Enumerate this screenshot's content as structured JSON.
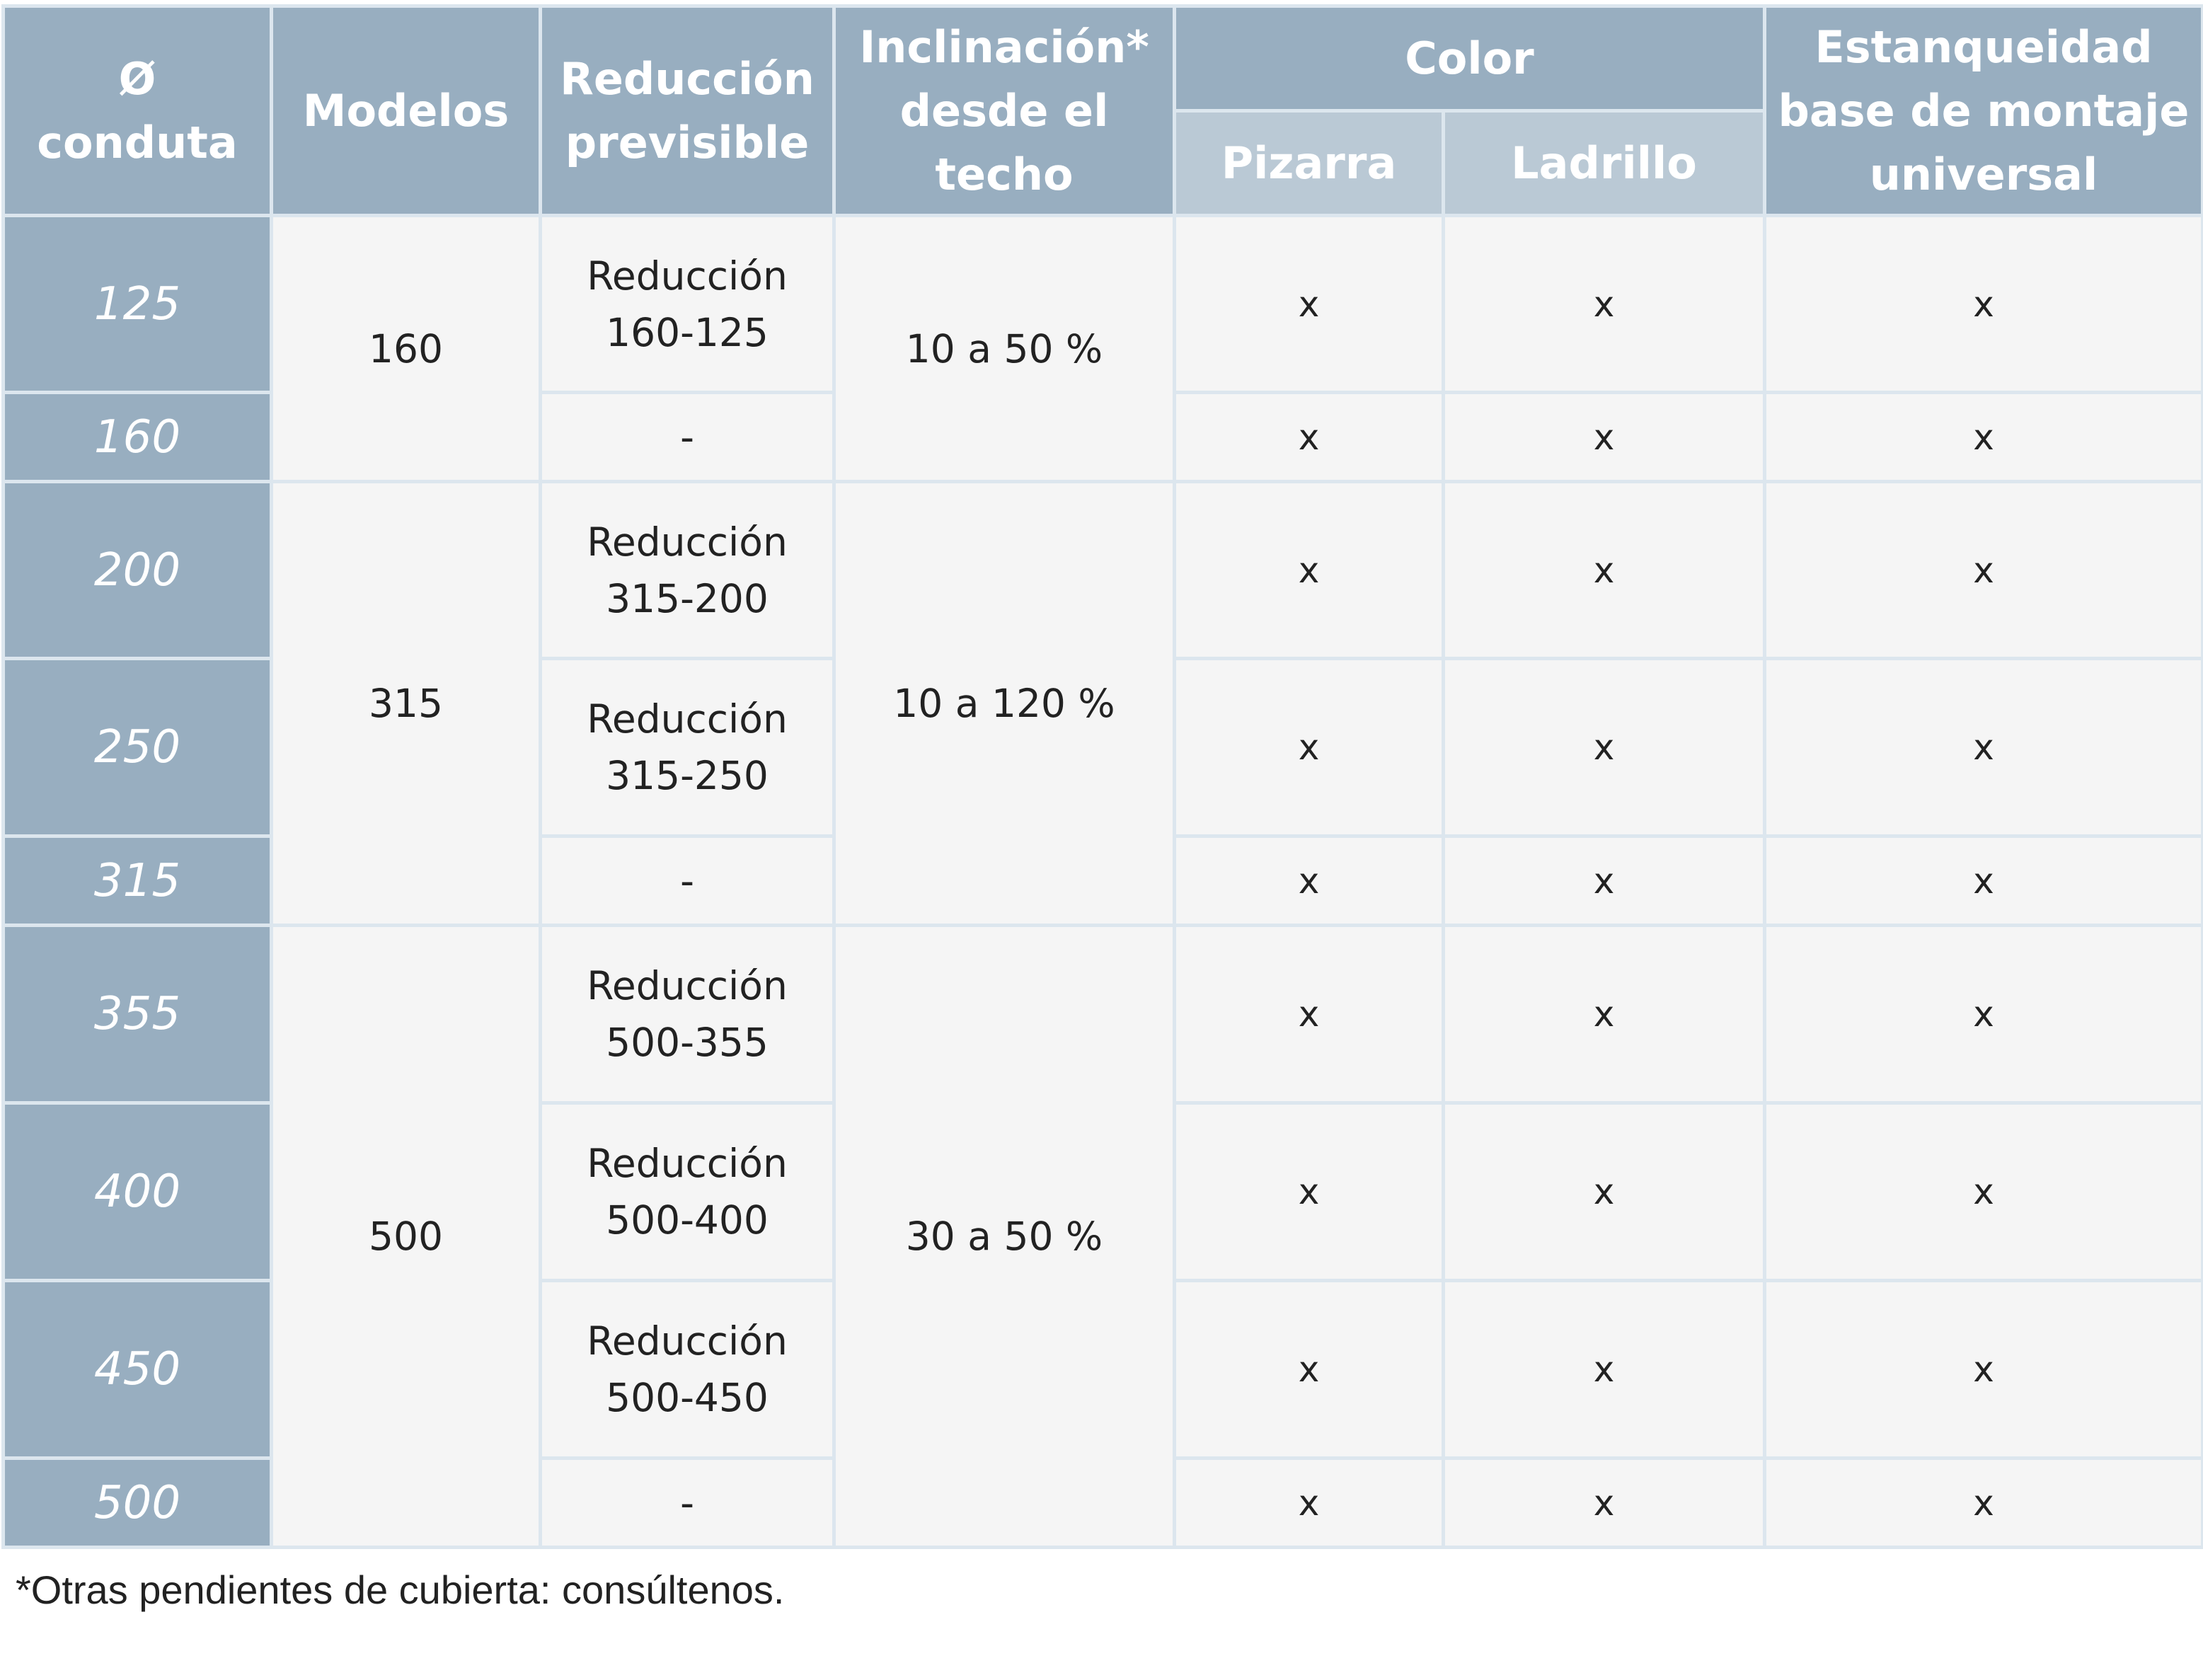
{
  "header": {
    "duct": [
      "Ø",
      "conduta"
    ],
    "models": [
      "Modelos"
    ],
    "reduction": [
      "Reducción",
      "previsible"
    ],
    "incline": [
      "Inclinación*",
      "desde el",
      "techo"
    ],
    "color": "Color",
    "color_sub": [
      "Pizarra",
      "Ladrillo"
    ],
    "seal": [
      "Estanqueidad",
      "base de montaje",
      "universal"
    ]
  },
  "rows": [
    {
      "duct": "125",
      "reduction": [
        "Reducción",
        "160-125"
      ],
      "pizarra": "x",
      "ladrillo": "x",
      "seal": "x"
    },
    {
      "duct": "160",
      "reduction": [
        "-"
      ],
      "pizarra": "x",
      "ladrillo": "x",
      "seal": "x"
    },
    {
      "duct": "200",
      "reduction": [
        "Reducción",
        "315-200"
      ],
      "pizarra": "x",
      "ladrillo": "x",
      "seal": "x"
    },
    {
      "duct": "250",
      "reduction": [
        "Reducción",
        "315-250"
      ],
      "pizarra": "x",
      "ladrillo": "x",
      "seal": "x"
    },
    {
      "duct": "315",
      "reduction": [
        "-"
      ],
      "pizarra": "x",
      "ladrillo": "x",
      "seal": "x"
    },
    {
      "duct": "355",
      "reduction": [
        "Reducción",
        "500-355"
      ],
      "pizarra": "x",
      "ladrillo": "x",
      "seal": "x"
    },
    {
      "duct": "400",
      "reduction": [
        "Reducción",
        "500-400"
      ],
      "pizarra": "x",
      "ladrillo": "x",
      "seal": "x"
    },
    {
      "duct": "450",
      "reduction": [
        "Reducción",
        "500-450"
      ],
      "pizarra": "x",
      "ladrillo": "x",
      "seal": "x"
    },
    {
      "duct": "500",
      "reduction": [
        "-"
      ],
      "pizarra": "x",
      "ladrillo": "x",
      "seal": "x"
    }
  ],
  "groups": [
    {
      "model": "160",
      "incline": "10 a 50 %"
    },
    {
      "model": "315",
      "incline": "10 a 120 %"
    },
    {
      "model": "500",
      "incline": "30 a 50 %"
    }
  ],
  "footnote": "*Otras pendientes de cubierta: consúltenos."
}
